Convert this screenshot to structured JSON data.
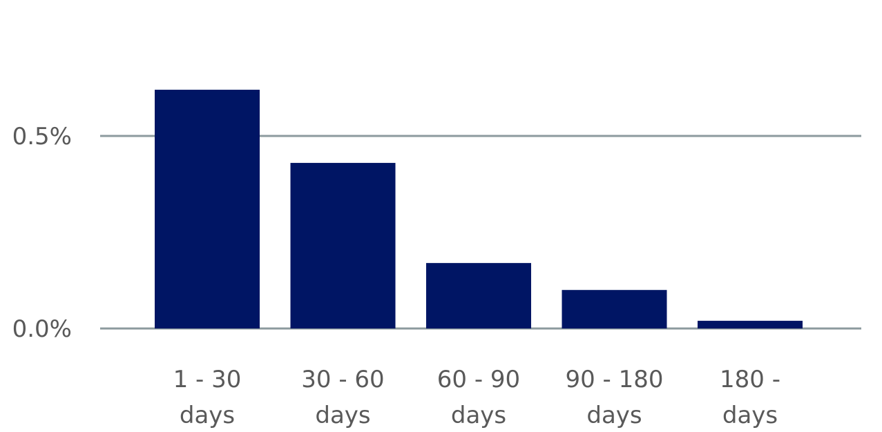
{
  "chart_data": {
    "type": "bar",
    "categories": [
      [
        "1 - 30",
        "days"
      ],
      [
        "30 - 60",
        "days"
      ],
      [
        "60 - 90",
        "days"
      ],
      [
        "90 - 180",
        "days"
      ],
      [
        "180 -",
        "days"
      ]
    ],
    "values": [
      0.62,
      0.43,
      0.17,
      0.1,
      0.02
    ],
    "ylim": [
      0,
      0.8
    ],
    "yticks": [
      0.0,
      0.5
    ],
    "ytick_labels": [
      "0.0%",
      "0.5%"
    ],
    "grid": true,
    "title": "",
    "xlabel": "",
    "ylabel": "",
    "colors": {
      "bar": "#001564",
      "grid": "#8C9A9E",
      "text": "#595959"
    }
  }
}
